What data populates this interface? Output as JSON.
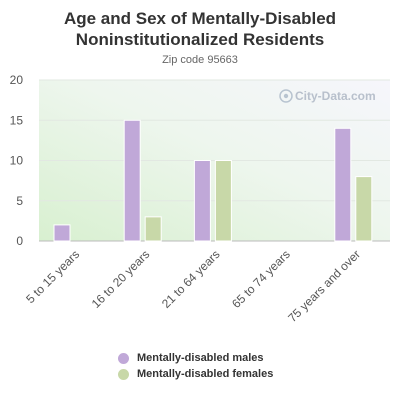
{
  "chart_data": {
    "type": "bar",
    "title_line1": "Age and Sex of Mentally-Disabled",
    "title_line2": "Noninstitutionalized Residents",
    "subtitle": "Zip code 95663",
    "watermark": "City-Data.com",
    "categories": [
      "5 to 15 years",
      "16 to 20 years",
      "21 to 64 years",
      "65 to 74 years",
      "75 years and over"
    ],
    "series": [
      {
        "name": "Mentally-disabled males",
        "color": "#c0a8d8",
        "values": [
          2,
          15,
          10,
          0,
          14
        ]
      },
      {
        "name": "Mentally-disabled females",
        "color": "#c8d8a8",
        "values": [
          0,
          3,
          10,
          0,
          8
        ]
      }
    ],
    "yticks": [
      0,
      5,
      10,
      15,
      20
    ],
    "ylim": [
      0,
      20
    ],
    "grid": true,
    "legend_position": "bottom"
  }
}
